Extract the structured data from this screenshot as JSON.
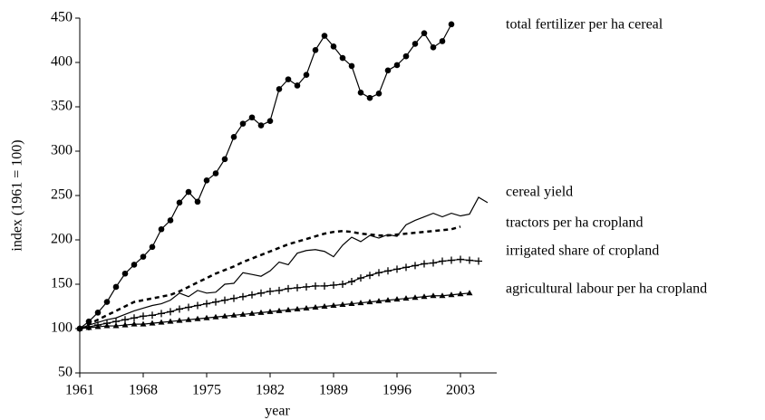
{
  "chart_data": {
    "type": "line",
    "xlabel": "year",
    "ylabel": "index (1961 = 100)",
    "x": [
      1961,
      1962,
      1963,
      1964,
      1965,
      1966,
      1967,
      1968,
      1969,
      1970,
      1971,
      1972,
      1973,
      1974,
      1975,
      1976,
      1977,
      1978,
      1979,
      1980,
      1981,
      1982,
      1983,
      1984,
      1985,
      1986,
      1987,
      1988,
      1989,
      1990,
      1991,
      1992,
      1993,
      1994,
      1995,
      1996,
      1997,
      1998,
      1999,
      2000,
      2001,
      2002,
      2003,
      2004,
      2005,
      2006
    ],
    "xlim": [
      1961,
      2007
    ],
    "xticks": [
      1961,
      1968,
      1975,
      1982,
      1989,
      1996,
      2003
    ],
    "ylim": [
      50,
      450
    ],
    "yticks": [
      50,
      100,
      150,
      200,
      250,
      300,
      350,
      400,
      450
    ],
    "series": [
      {
        "name": "total fertilizer per ha cereal",
        "color": "#000000",
        "marker": "circle",
        "dash": "solid",
        "values": [
          100,
          108,
          118,
          130,
          147,
          162,
          172,
          181,
          192,
          212,
          222,
          242,
          254,
          243,
          267,
          275,
          291,
          316,
          331,
          338,
          329,
          334,
          370,
          381,
          374,
          386,
          414,
          430,
          418,
          405,
          396,
          366,
          360,
          365,
          391,
          397,
          407,
          421,
          433,
          417,
          424,
          443,
          null,
          null,
          null,
          null
        ]
      },
      {
        "name": "cereal yield",
        "color": "#000000",
        "marker": "none",
        "dash": "solid",
        "values": [
          100,
          104,
          107,
          110,
          112,
          116,
          120,
          123,
          126,
          128,
          132,
          140,
          136,
          143,
          140,
          141,
          150,
          151,
          163,
          161,
          159,
          165,
          175,
          172,
          185,
          188,
          189,
          187,
          181,
          194,
          203,
          198,
          205,
          202,
          206,
          204,
          217,
          222,
          226,
          230,
          226,
          230,
          227,
          229,
          248,
          242
        ]
      },
      {
        "name": "tractors per ha cropland",
        "color": "#000000",
        "marker": "none",
        "dash": "dashed",
        "values": [
          100,
          105,
          110,
          115,
          120,
          125,
          130,
          132,
          134,
          136,
          138,
          142,
          147,
          152,
          157,
          162,
          166,
          170,
          175,
          179,
          183,
          187,
          191,
          195,
          198,
          201,
          204,
          207,
          209,
          210,
          209,
          207,
          206,
          205,
          205,
          206,
          207,
          208,
          209,
          210,
          211,
          212,
          215,
          null,
          null,
          null
        ]
      },
      {
        "name": "irrigated share of cropland",
        "color": "#000000",
        "marker": "plus",
        "dash": "solid",
        "values": [
          100,
          102,
          104,
          106,
          108,
          110,
          112,
          114,
          115,
          117,
          119,
          122,
          124,
          126,
          128,
          130,
          132,
          134,
          136,
          138,
          140,
          142,
          143,
          145,
          146,
          147,
          148,
          148,
          149,
          150,
          153,
          157,
          160,
          163,
          165,
          167,
          169,
          171,
          173,
          174,
          176,
          177,
          178,
          177,
          176,
          null
        ]
      },
      {
        "name": "agricultural labour per ha cropland",
        "color": "#000000",
        "marker": "triangle",
        "dash": "solid",
        "values": [
          100,
          101,
          102,
          103,
          103,
          104,
          105,
          105,
          106,
          107,
          108,
          109,
          110,
          111,
          112,
          113,
          114,
          115,
          116,
          117,
          118,
          119,
          120,
          121,
          122,
          123,
          124,
          125,
          126,
          127,
          128,
          129,
          130,
          131,
          132,
          133,
          134,
          135,
          136,
          137,
          137,
          138,
          139,
          140,
          null,
          null
        ]
      }
    ]
  }
}
